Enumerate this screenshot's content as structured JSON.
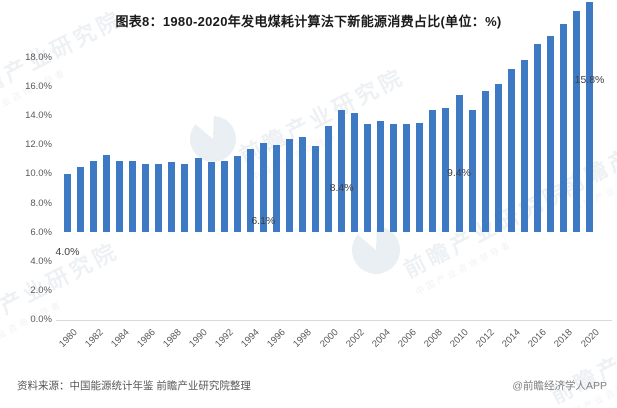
{
  "title": "图表8：1980-2020年发电煤耗计算法下新能源消费占比(单位：%)",
  "footer": {
    "source": "资料来源：中国能源统计年鉴 前瞻产业研究院整理",
    "credit": "@前瞻经济学人APP"
  },
  "watermark": {
    "text": "前瞻产业研究院",
    "subtext": "中国产业咨询领导者"
  },
  "colors": {
    "bar": "#3e79c4",
    "title_text": "#1a1a1a",
    "axis_text": "#595959",
    "axis_line": "#d9d9d9",
    "data_label_text": "#404040"
  },
  "chart_data": {
    "type": "bar",
    "title": "图表8：1980-2020年发电煤耗计算法下新能源消费占比(单位：%)",
    "xlabel": "",
    "ylabel": "",
    "ylim": [
      0,
      18
    ],
    "ytick_step": 2,
    "grid": false,
    "legend": "none",
    "bar_color": "#3e79c4",
    "categories": [
      "1980",
      "1981",
      "1982",
      "1983",
      "1984",
      "1985",
      "1986",
      "1987",
      "1988",
      "1989",
      "1990",
      "1991",
      "1992",
      "1993",
      "1994",
      "1995",
      "1996",
      "1997",
      "1998",
      "1999",
      "2000",
      "2001",
      "2002",
      "2003",
      "2004",
      "2005",
      "2006",
      "2007",
      "2008",
      "2009",
      "2010",
      "2011",
      "2012",
      "2013",
      "2014",
      "2015",
      "2016",
      "2017",
      "2018",
      "2019",
      "2020"
    ],
    "values": [
      4.0,
      4.5,
      4.9,
      5.3,
      4.9,
      4.9,
      4.7,
      4.7,
      4.8,
      4.7,
      5.1,
      4.8,
      4.9,
      5.2,
      5.7,
      6.1,
      6.0,
      6.4,
      6.5,
      5.9,
      7.3,
      8.4,
      8.2,
      7.4,
      7.6,
      7.4,
      7.4,
      7.5,
      8.4,
      8.5,
      9.4,
      8.4,
      9.7,
      10.2,
      11.2,
      11.8,
      12.9,
      13.5,
      14.3,
      15.2,
      15.8
    ],
    "ytick_labels": [
      "0.0%",
      "2.0%",
      "4.0%",
      "6.0%",
      "8.0%",
      "10.0%",
      "12.0%",
      "14.0%",
      "16.0%",
      "18.0%"
    ],
    "xtick_labels": [
      "1980",
      "1982",
      "1984",
      "1986",
      "1988",
      "1990",
      "1992",
      "1994",
      "1996",
      "1998",
      "2000",
      "2002",
      "2004",
      "2006",
      "2008",
      "2010",
      "2012",
      "2014",
      "2016",
      "2018",
      "2020"
    ],
    "labeled_points": [
      {
        "index": 0,
        "category": "1980",
        "label": "4.0%"
      },
      {
        "index": 15,
        "category": "1995",
        "label": "6.1%"
      },
      {
        "index": 21,
        "category": "2001",
        "label": "8.4%"
      },
      {
        "index": 30,
        "category": "2010",
        "label": "9.4%"
      },
      {
        "index": 40,
        "category": "2020",
        "label": "15.8%"
      }
    ]
  }
}
